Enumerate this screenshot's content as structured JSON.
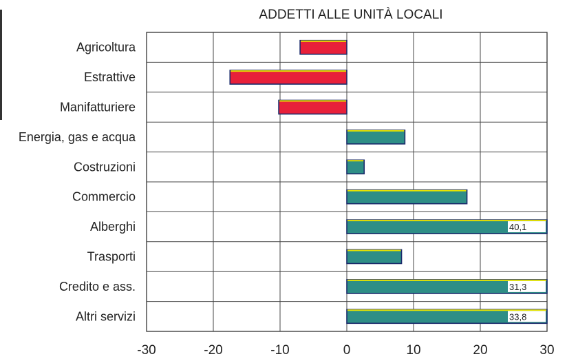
{
  "chart_data": {
    "type": "bar",
    "orientation": "horizontal",
    "title": "ADDETTI ALLE UNITÀ LOCALI",
    "categories": [
      "Agricoltura",
      "Estrattive",
      "Manifatturiere",
      "Energia, gas e acqua",
      "Costruzioni",
      "Commercio",
      "Alberghi",
      "Trasporti",
      "Credito e ass.",
      "Altri servizi"
    ],
    "values": [
      -7,
      -17.5,
      -10.2,
      8.7,
      2.6,
      18,
      40.1,
      8.2,
      31.3,
      33.8
    ],
    "value_labels": [
      "",
      "",
      "",
      "",
      "",
      "",
      "40,1",
      "",
      "31,3",
      "33,8"
    ],
    "xlim": [
      -30,
      30
    ],
    "xticks": [
      "-30",
      "-20",
      "-10",
      "0",
      "10",
      "20",
      "30"
    ],
    "grid": true,
    "colors": {
      "negative": "#e8203a",
      "positive": "#2e8e86",
      "edge": "#1a2a6b",
      "highlight": "#e8e400"
    }
  }
}
